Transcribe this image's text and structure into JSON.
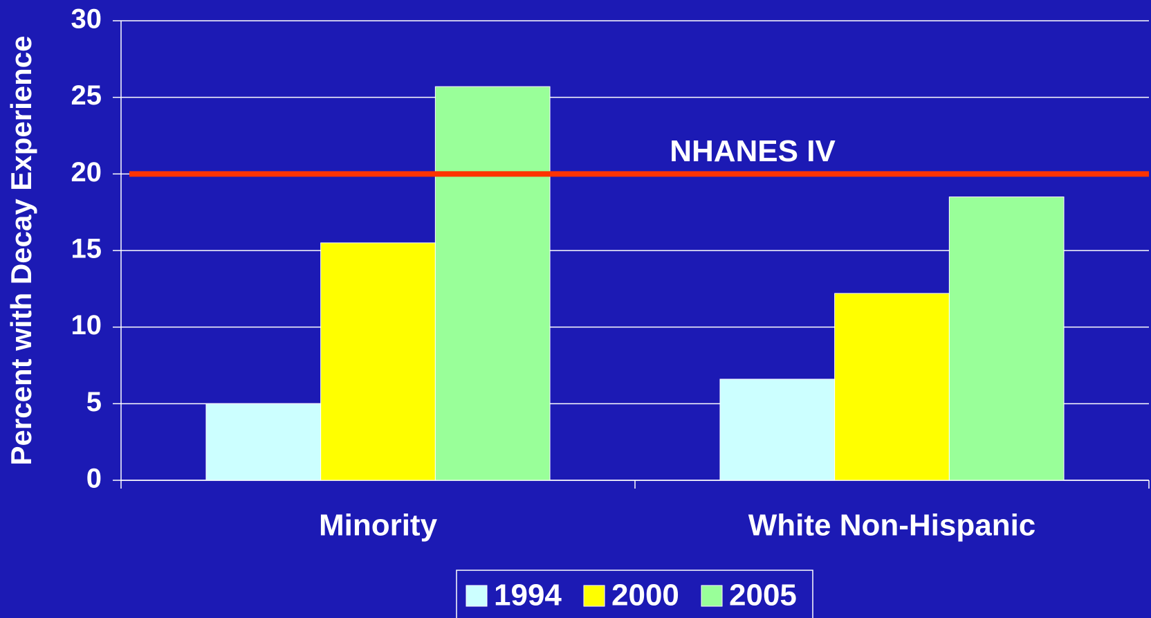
{
  "chart_data": {
    "type": "bar",
    "y_label": "Percent with Decay Experience",
    "categories": [
      "Minority",
      "White Non-Hispanic"
    ],
    "series": [
      {
        "name": "1994",
        "color": "#ccffff",
        "values": [
          5.0,
          6.6
        ]
      },
      {
        "name": "2000",
        "color": "#ffff00",
        "values": [
          15.5,
          12.2
        ]
      },
      {
        "name": "2005",
        "color": "#99ff99",
        "values": [
          25.7,
          18.5
        ]
      }
    ],
    "reference_line": {
      "value": 20,
      "label": "NHANES IV",
      "color": "#ff3300"
    },
    "ylim": [
      0,
      30
    ],
    "yticks": [
      0,
      5,
      10,
      15,
      20,
      25,
      30
    ],
    "grid": true,
    "legend": "bottom"
  }
}
